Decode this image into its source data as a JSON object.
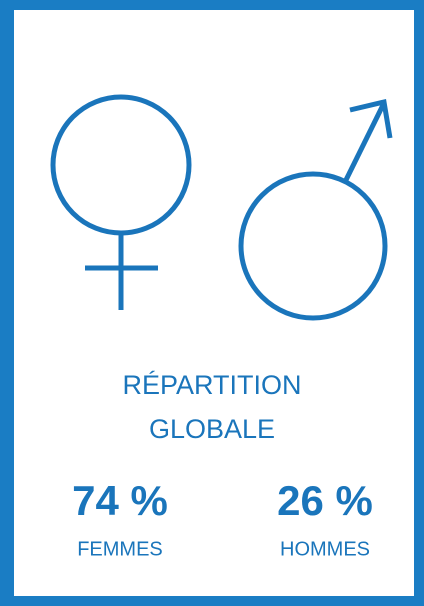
{
  "title": [
    "RÉPARTITION",
    "GLOBALE"
  ],
  "stats": [
    {
      "value": "74 %",
      "label": "FEMMES"
    },
    {
      "value": "26 %",
      "label": "HOMMES"
    }
  ]
}
